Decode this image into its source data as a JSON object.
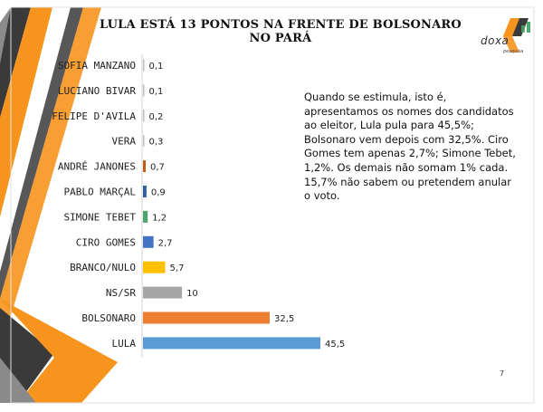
{
  "title": "LULA ESTÁ 13 PONTOS NA FRENTE DE BOLSONARO NO PARÁ",
  "logo": {
    "name": "doxa",
    "subtitle": "pesquisa"
  },
  "note": "Quando se estimula, isto é, apresentamos os nomes dos candidatos ao eleitor, Lula pula para 45,5%; Bolsonaro vem depois com 32,5%. Ciro Gomes tem apenas 2,7%; Simone Tebet, 1,2%. Os demais não somam 1% cada. 15,7% não sabem ou pretendem anular o voto.",
  "page_number": "7",
  "colors": {
    "accent_orange": "#f7941d",
    "decor_dark": "#3a3a3a",
    "decor_grey": "#8a8a8a"
  },
  "chart_data": {
    "type": "bar",
    "orientation": "horizontal",
    "categories": [
      "SOFIA MANZANO",
      "LUCIANO BIVAR",
      "FELIPE D'AVILA",
      "VERA",
      "ANDRÉ JANONES",
      "PABLO MARÇAL",
      "SIMONE TEBET",
      "CIRO GOMES",
      "BRANCO/NULO",
      "NS/SR",
      "BOLSONARO",
      "LULA"
    ],
    "values": [
      0.1,
      0.1,
      0.2,
      0.3,
      0.7,
      0.9,
      1.2,
      2.7,
      5.7,
      10,
      32.5,
      45.5
    ],
    "value_labels": [
      "0,1",
      "0,1",
      "0,2",
      "0,3",
      "0,7",
      "0,9",
      "1,2",
      "2,7",
      "5,7",
      "10",
      "32,5",
      "45,5"
    ],
    "colors": [
      "#bfbfbf",
      "#bfbfbf",
      "#bfbfbf",
      "#bfbfbf",
      "#c55a11",
      "#2e5f9e",
      "#4aa66a",
      "#4472c4",
      "#ffc000",
      "#a5a5a5",
      "#ed7d31",
      "#5b9bd5"
    ],
    "xlim": [
      0,
      45.5
    ],
    "grid": false,
    "legend": "none"
  }
}
